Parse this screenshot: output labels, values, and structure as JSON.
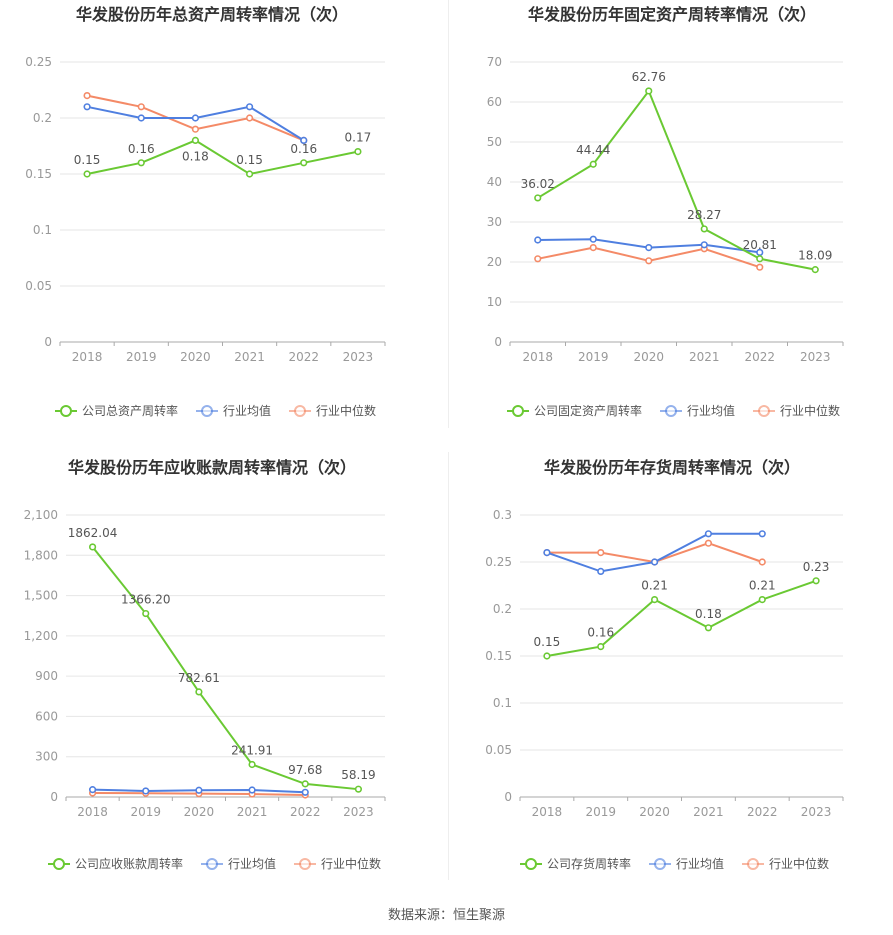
{
  "source_text": "数据来源：恒生聚源",
  "colors": {
    "company": "#6ac933",
    "avg": "#4f7fe0",
    "median": "#f48a67",
    "grid": "#e6e6e6",
    "axis": "#aaaaaa",
    "tick": "#999999",
    "title": "#333333",
    "label": "#555555"
  },
  "chart_data": [
    {
      "type": "line",
      "title": "华发股份历年总资产周转率情况（次）",
      "categories": [
        "2018",
        "2019",
        "2020",
        "2021",
        "2022",
        "2023"
      ],
      "ylim": [
        0,
        0.25
      ],
      "yticks": [
        "0",
        "0.05",
        "0.1",
        "0.15",
        "0.2",
        "0.25"
      ],
      "grid": true,
      "legend_position": "bottom",
      "series": [
        {
          "name": "公司总资产周转率",
          "role": "company",
          "values": [
            0.15,
            0.16,
            0.18,
            0.15,
            0.16,
            0.17
          ],
          "labels": [
            "0.15",
            "0.16",
            "0.18",
            "0.15",
            "0.16",
            "0.17"
          ]
        },
        {
          "name": "行业均值",
          "role": "avg",
          "values": [
            0.21,
            0.2,
            0.2,
            0.21,
            0.18,
            null
          ]
        },
        {
          "name": "行业中位数",
          "role": "median",
          "values": [
            0.22,
            0.21,
            0.19,
            0.2,
            0.18,
            null
          ]
        }
      ]
    },
    {
      "type": "line",
      "title": "华发股份历年固定资产周转率情况（次）",
      "categories": [
        "2018",
        "2019",
        "2020",
        "2021",
        "2022",
        "2023"
      ],
      "ylim": [
        0,
        70
      ],
      "yticks": [
        "0",
        "10",
        "20",
        "30",
        "40",
        "50",
        "60",
        "70"
      ],
      "grid": true,
      "legend_position": "bottom",
      "series": [
        {
          "name": "公司固定资产周转率",
          "role": "company",
          "values": [
            36.02,
            44.44,
            62.76,
            28.27,
            20.81,
            18.09
          ],
          "labels": [
            "36.02",
            "44.44",
            "62.76",
            "28.27",
            "20.81",
            "18.09"
          ]
        },
        {
          "name": "行业均值",
          "role": "avg",
          "values": [
            25.5,
            25.7,
            23.6,
            24.3,
            22.4,
            null
          ]
        },
        {
          "name": "行业中位数",
          "role": "median",
          "values": [
            20.8,
            23.6,
            20.3,
            23.3,
            18.7,
            null
          ]
        }
      ]
    },
    {
      "type": "line",
      "title": "华发股份历年应收账款周转率情况（次）",
      "categories": [
        "2018",
        "2019",
        "2020",
        "2021",
        "2022",
        "2023"
      ],
      "ylim": [
        0,
        2100
      ],
      "yticks": [
        "0",
        "300",
        "600",
        "900",
        "1,200",
        "1,500",
        "1,800",
        "2,100"
      ],
      "grid": true,
      "legend_position": "bottom",
      "series": [
        {
          "name": "公司应收账款周转率",
          "role": "company",
          "values": [
            1862.04,
            1366.2,
            782.61,
            241.91,
            97.68,
            58.19
          ],
          "labels": [
            "1862.04",
            "1366.20",
            "782.61",
            "241.91",
            "97.68",
            "58.19"
          ]
        },
        {
          "name": "行业均值",
          "role": "avg",
          "values": [
            55,
            45,
            50,
            52,
            35,
            null
          ]
        },
        {
          "name": "行业中位数",
          "role": "median",
          "values": [
            30,
            28,
            25,
            22,
            15,
            null
          ]
        }
      ]
    },
    {
      "type": "line",
      "title": "华发股份历年存货周转率情况（次）",
      "categories": [
        "2018",
        "2019",
        "2020",
        "2021",
        "2022",
        "2023"
      ],
      "ylim": [
        0,
        0.3
      ],
      "yticks": [
        "0",
        "0.05",
        "0.1",
        "0.15",
        "0.2",
        "0.25",
        "0.3"
      ],
      "grid": true,
      "legend_position": "bottom",
      "series": [
        {
          "name": "公司存货周转率",
          "role": "company",
          "values": [
            0.15,
            0.16,
            0.21,
            0.18,
            0.21,
            0.23
          ],
          "labels": [
            "0.15",
            "0.16",
            "0.21",
            "0.18",
            "0.21",
            "0.23"
          ]
        },
        {
          "name": "行业均值",
          "role": "avg",
          "values": [
            0.26,
            0.24,
            0.25,
            0.28,
            0.28,
            null
          ]
        },
        {
          "name": "行业中位数",
          "role": "median",
          "values": [
            0.26,
            0.26,
            0.25,
            0.27,
            0.25,
            null
          ]
        }
      ]
    }
  ]
}
